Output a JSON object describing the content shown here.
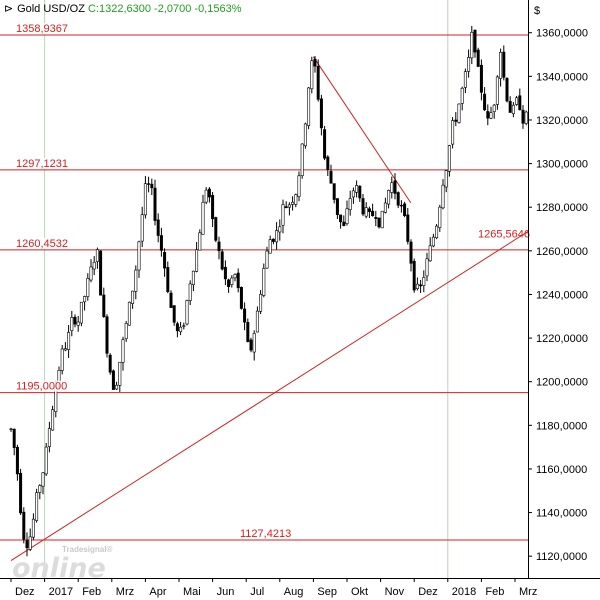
{
  "header": {
    "icon": "chart-type-icon",
    "instrument": "Gold USD/OZ",
    "quote": "C:1322,6300 -2,0700 -0,1563%"
  },
  "logo": {
    "small": "Tradesignal®",
    "big": "online"
  },
  "colors": {
    "candle": "#000000",
    "hline": "#d42020",
    "trend": "#d42020",
    "grid": "#b8d6b8",
    "axis_text": "#000000"
  },
  "chart_data": {
    "type": "candlestick",
    "title": "",
    "currency_label": "$",
    "y_range": [
      1110,
      1375
    ],
    "y_ticks": [
      {
        "v": 1120,
        "label": "1120,0000"
      },
      {
        "v": 1140,
        "label": "1140,0000"
      },
      {
        "v": 1160,
        "label": "1160,0000"
      },
      {
        "v": 1180,
        "label": "1180,0000"
      },
      {
        "v": 1200,
        "label": "1200,0000"
      },
      {
        "v": 1220,
        "label": "1220,0000"
      },
      {
        "v": 1240,
        "label": "1240,0000"
      },
      {
        "v": 1260,
        "label": "1260,0000"
      },
      {
        "v": 1280,
        "label": "1280,0000"
      },
      {
        "v": 1300,
        "label": "1300,0000"
      },
      {
        "v": 1320,
        "label": "1320,0000"
      },
      {
        "v": 1340,
        "label": "1340,0000"
      },
      {
        "v": 1360,
        "label": "1360,0000"
      }
    ],
    "x_labels": [
      {
        "m": 0,
        "label": "Dez"
      },
      {
        "m": 1,
        "label": "2017"
      },
      {
        "m": 2,
        "label": "Feb"
      },
      {
        "m": 3,
        "label": "Mrz"
      },
      {
        "m": 4,
        "label": "Apr"
      },
      {
        "m": 5,
        "label": "Mai"
      },
      {
        "m": 6,
        "label": "Jun"
      },
      {
        "m": 7,
        "label": "Jul"
      },
      {
        "m": 8,
        "label": "Aug"
      },
      {
        "m": 9,
        "label": "Sep"
      },
      {
        "m": 10,
        "label": "Okt"
      },
      {
        "m": 11,
        "label": "Nov"
      },
      {
        "m": 12,
        "label": "Dez"
      },
      {
        "m": 13,
        "label": "2018"
      },
      {
        "m": 14,
        "label": "Feb"
      },
      {
        "m": 15,
        "label": "Mrz"
      }
    ],
    "year_separators": [
      1,
      13
    ],
    "horizontal_levels": [
      {
        "value": 1358.9367,
        "label": "1358,9367",
        "label_pos": "left"
      },
      {
        "value": 1297.1231,
        "label": "1297,1231",
        "label_pos": "left"
      },
      {
        "value": 1260.4532,
        "label": "1260,4532",
        "label_pos": "left"
      },
      {
        "value": 1195.0,
        "label": "1195,0000",
        "label_pos": "left"
      },
      {
        "value": 1127.4213,
        "label": "1127,4213",
        "label_pos": "middle"
      }
    ],
    "trendlines": [
      {
        "from": [
          0.0,
          1118
        ],
        "to": [
          15.4,
          1269
        ],
        "label": "1265,5646"
      },
      {
        "from": [
          9.0,
          1349
        ],
        "to": [
          11.9,
          1282
        ],
        "label": ""
      }
    ],
    "price_path": [
      [
        0.0,
        1178
      ],
      [
        0.15,
        1165
      ],
      [
        0.3,
        1140
      ],
      [
        0.42,
        1125
      ],
      [
        0.6,
        1130
      ],
      [
        0.8,
        1150
      ],
      [
        1.0,
        1162
      ],
      [
        1.15,
        1180
      ],
      [
        1.35,
        1200
      ],
      [
        1.5,
        1212
      ],
      [
        1.7,
        1220
      ],
      [
        1.85,
        1230
      ],
      [
        2.0,
        1228
      ],
      [
        2.2,
        1240
      ],
      [
        2.45,
        1255
      ],
      [
        2.55,
        1262
      ],
      [
        2.65,
        1245
      ],
      [
        2.8,
        1222
      ],
      [
        3.0,
        1200
      ],
      [
        3.1,
        1197
      ],
      [
        3.3,
        1215
      ],
      [
        3.5,
        1232
      ],
      [
        3.7,
        1250
      ],
      [
        3.85,
        1270
      ],
      [
        4.0,
        1288
      ],
      [
        4.15,
        1290
      ],
      [
        4.35,
        1270
      ],
      [
        4.55,
        1255
      ],
      [
        4.8,
        1230
      ],
      [
        5.0,
        1220
      ],
      [
        5.15,
        1228
      ],
      [
        5.35,
        1248
      ],
      [
        5.55,
        1262
      ],
      [
        5.75,
        1285
      ],
      [
        5.85,
        1292
      ],
      [
        6.0,
        1272
      ],
      [
        6.2,
        1258
      ],
      [
        6.45,
        1242
      ],
      [
        6.65,
        1250
      ],
      [
        6.85,
        1235
      ],
      [
        7.0,
        1220
      ],
      [
        7.1,
        1212
      ],
      [
        7.3,
        1228
      ],
      [
        7.5,
        1250
      ],
      [
        7.7,
        1265
      ],
      [
        7.9,
        1268
      ],
      [
        8.1,
        1280
      ],
      [
        8.3,
        1282
      ],
      [
        8.5,
        1288
      ],
      [
        8.7,
        1310
      ],
      [
        8.85,
        1335
      ],
      [
        9.0,
        1350
      ],
      [
        9.15,
        1330
      ],
      [
        9.35,
        1300
      ],
      [
        9.55,
        1290
      ],
      [
        9.75,
        1275
      ],
      [
        9.9,
        1270
      ],
      [
        10.1,
        1285
      ],
      [
        10.25,
        1290
      ],
      [
        10.45,
        1280
      ],
      [
        10.65,
        1275
      ],
      [
        10.85,
        1278
      ],
      [
        11.0,
        1272
      ],
      [
        11.15,
        1282
      ],
      [
        11.3,
        1292
      ],
      [
        11.5,
        1285
      ],
      [
        11.7,
        1275
      ],
      [
        11.85,
        1262
      ],
      [
        12.0,
        1245
      ],
      [
        12.15,
        1240
      ],
      [
        12.3,
        1250
      ],
      [
        12.5,
        1262
      ],
      [
        12.7,
        1275
      ],
      [
        12.85,
        1292
      ],
      [
        13.0,
        1302
      ],
      [
        13.1,
        1315
      ],
      [
        13.25,
        1322
      ],
      [
        13.45,
        1335
      ],
      [
        13.6,
        1345
      ],
      [
        13.75,
        1362
      ],
      [
        13.9,
        1342
      ],
      [
        14.05,
        1330
      ],
      [
        14.2,
        1318
      ],
      [
        14.4,
        1330
      ],
      [
        14.55,
        1355
      ],
      [
        14.7,
        1335
      ],
      [
        14.9,
        1322
      ],
      [
        15.1,
        1330
      ],
      [
        15.25,
        1320
      ],
      [
        15.4,
        1322
      ]
    ]
  }
}
